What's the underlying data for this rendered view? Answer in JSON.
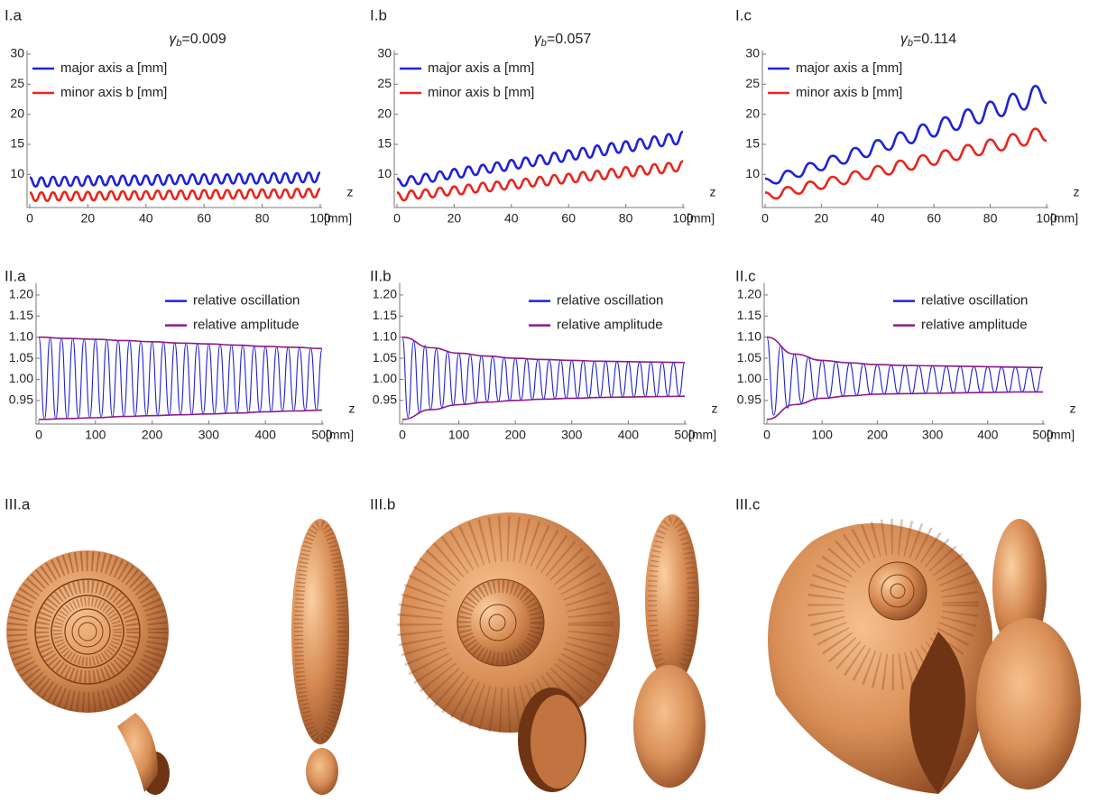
{
  "chart_data": [
    {
      "type": "line",
      "panel_label": "I.a",
      "title_symbol": "γ",
      "title_subscript": "b",
      "title_value": "=0.009",
      "x_label": "z",
      "x_unit": "[mm]",
      "xlim": [
        0,
        100
      ],
      "xticks": [
        0,
        20,
        40,
        60,
        80,
        100
      ],
      "ylim": [
        4.5,
        30
      ],
      "yticks": [
        10,
        15,
        20,
        25,
        30
      ],
      "x": [
        0,
        2,
        4,
        6,
        8,
        10,
        12,
        14,
        16,
        18,
        20,
        22,
        24,
        26,
        28,
        30,
        32,
        34,
        36,
        38,
        40,
        42,
        44,
        46,
        48,
        50,
        52,
        54,
        56,
        58,
        60,
        62,
        64,
        66,
        68,
        70,
        72,
        74,
        76,
        78,
        80,
        82,
        84,
        86,
        88,
        90,
        92,
        94,
        96,
        98,
        100
      ],
      "series": [
        {
          "name": "major axis a [mm]",
          "color": "#1f22d8",
          "values": [
            9.5,
            8.0,
            9.5,
            8.0,
            9.6,
            8.1,
            9.6,
            8.1,
            9.6,
            8.1,
            9.7,
            8.2,
            9.7,
            8.2,
            9.7,
            8.2,
            9.8,
            8.2,
            9.8,
            8.3,
            9.8,
            8.3,
            9.9,
            8.3,
            9.9,
            8.4,
            9.9,
            8.4,
            10.0,
            8.4,
            10.0,
            8.4,
            10.0,
            8.5,
            10.0,
            8.5,
            10.1,
            8.5,
            10.1,
            8.5,
            10.1,
            8.6,
            10.2,
            8.6,
            10.2,
            8.6,
            10.2,
            8.7,
            10.3,
            8.7,
            10.3
          ]
        },
        {
          "name": "minor axis b [mm]",
          "color": "#e8261c",
          "values": [
            7.0,
            5.6,
            7.0,
            5.6,
            7.0,
            5.7,
            7.1,
            5.7,
            7.1,
            5.7,
            7.1,
            5.7,
            7.1,
            5.8,
            7.2,
            5.8,
            7.2,
            5.8,
            7.2,
            5.8,
            7.2,
            5.9,
            7.3,
            5.9,
            7.3,
            5.9,
            7.3,
            5.9,
            7.3,
            5.9,
            7.4,
            6.0,
            7.4,
            6.0,
            7.4,
            6.0,
            7.4,
            6.0,
            7.5,
            6.1,
            7.5,
            6.1,
            7.5,
            6.1,
            7.5,
            6.1,
            7.6,
            6.2,
            7.6,
            6.2,
            7.6
          ]
        }
      ]
    },
    {
      "type": "line",
      "panel_label": "I.b",
      "title_symbol": "γ",
      "title_subscript": "b",
      "title_value": "=0.057",
      "x_label": "z",
      "x_unit": "[mm]",
      "xlim": [
        0,
        100
      ],
      "xticks": [
        0,
        20,
        40,
        60,
        80,
        100
      ],
      "ylim": [
        4.5,
        30
      ],
      "yticks": [
        10,
        15,
        20,
        25,
        30
      ],
      "x": [
        0,
        2.5,
        5,
        7.5,
        10,
        12.5,
        15,
        17.5,
        20,
        22.5,
        25,
        27.5,
        30,
        32.5,
        35,
        37.5,
        40,
        42.5,
        45,
        47.5,
        50,
        52.5,
        55,
        57.5,
        60,
        62.5,
        65,
        67.5,
        70,
        72.5,
        75,
        77.5,
        80,
        82.5,
        85,
        87.5,
        90,
        92.5,
        95,
        97.5,
        100
      ],
      "series": [
        {
          "name": "major axis a [mm]",
          "color": "#1f22d8",
          "values": [
            9.3,
            8.1,
            9.7,
            8.4,
            10.1,
            8.8,
            10.5,
            9.2,
            10.9,
            9.5,
            11.3,
            9.9,
            11.6,
            10.3,
            12.0,
            10.6,
            12.4,
            11.0,
            12.8,
            11.4,
            13.2,
            11.7,
            13.6,
            12.1,
            14.0,
            12.5,
            14.4,
            12.8,
            14.8,
            13.2,
            15.2,
            13.6,
            15.5,
            13.9,
            15.9,
            14.3,
            16.3,
            14.7,
            16.7,
            15.0,
            17.1
          ]
        },
        {
          "name": "minor axis b [mm]",
          "color": "#e8261c",
          "values": [
            7.0,
            5.7,
            7.3,
            6.0,
            7.5,
            6.2,
            7.8,
            6.5,
            8.0,
            6.7,
            8.3,
            7.0,
            8.6,
            7.2,
            8.8,
            7.5,
            9.1,
            7.7,
            9.3,
            8.0,
            9.6,
            8.2,
            9.9,
            8.5,
            10.1,
            8.7,
            10.4,
            9.0,
            10.6,
            9.2,
            10.9,
            9.5,
            11.2,
            9.7,
            11.4,
            10.0,
            11.7,
            10.2,
            11.9,
            10.5,
            12.2
          ]
        }
      ]
    },
    {
      "type": "line",
      "panel_label": "I.c",
      "title_symbol": "γ",
      "title_subscript": "b",
      "title_value": "=0.114",
      "x_label": "z",
      "x_unit": "[mm]",
      "xlim": [
        0,
        100
      ],
      "xticks": [
        0,
        20,
        40,
        60,
        80,
        100
      ],
      "ylim": [
        4.5,
        30
      ],
      "yticks": [
        10,
        15,
        20,
        25,
        30
      ],
      "x": [
        0,
        4,
        8,
        12,
        16,
        20,
        24,
        28,
        32,
        36,
        40,
        44,
        48,
        52,
        56,
        60,
        64,
        68,
        72,
        76,
        80,
        84,
        88,
        92,
        96,
        100
      ],
      "series": [
        {
          "name": "major axis a [mm]",
          "color": "#1f22d8",
          "values": [
            9.3,
            8.5,
            10.6,
            9.6,
            11.9,
            10.7,
            13.1,
            11.8,
            14.4,
            12.9,
            15.7,
            14.1,
            17.0,
            15.2,
            18.3,
            16.3,
            19.5,
            17.4,
            20.8,
            18.5,
            22.1,
            19.7,
            23.4,
            20.8,
            24.7,
            21.9
          ]
        },
        {
          "name": "minor axis b [mm]",
          "color": "#e8261c",
          "values": [
            7.0,
            6.0,
            7.9,
            6.8,
            8.8,
            7.6,
            9.6,
            8.4,
            10.5,
            9.2,
            11.4,
            10.0,
            12.3,
            10.8,
            13.2,
            11.6,
            14.0,
            12.4,
            14.9,
            13.2,
            15.8,
            14.0,
            16.7,
            14.8,
            17.6,
            15.6
          ]
        }
      ]
    },
    {
      "type": "line",
      "panel_label": "II.a",
      "x_label": "z",
      "x_unit": "[mm]",
      "xlim": [
        0,
        500
      ],
      "xticks": [
        0,
        100,
        200,
        300,
        400,
        500
      ],
      "ylim": [
        0.894,
        1.22
      ],
      "yticks": [
        0.95,
        {
          "value": 1.0,
          "label": "1.00"
        },
        1.05,
        {
          "value": 1.1,
          "label": "1.10"
        },
        1.15,
        {
          "value": 1.2,
          "label": "1.20"
        }
      ],
      "series": [
        {
          "name": "relative oscillation",
          "color": "#1f22d8",
          "x": [
            0,
            10,
            20,
            30,
            40,
            50,
            60,
            70,
            80,
            90,
            100,
            110,
            120,
            130,
            140,
            150,
            160,
            170,
            180,
            190,
            200,
            210,
            220,
            230,
            240,
            250,
            260,
            270,
            280,
            290,
            300,
            310,
            320,
            330,
            340,
            350,
            360,
            370,
            380,
            390,
            400,
            410,
            420,
            430,
            440,
            450,
            460,
            470,
            480,
            490,
            500
          ],
          "values": [
            1.1,
            0.905,
            1.099,
            0.906,
            1.098,
            0.907,
            1.097,
            0.908,
            1.096,
            0.909,
            1.095,
            0.91,
            1.094,
            0.911,
            1.092,
            0.912,
            1.091,
            0.912,
            1.09,
            0.913,
            1.089,
            0.914,
            1.088,
            0.915,
            1.087,
            0.916,
            1.086,
            0.917,
            1.085,
            0.918,
            1.084,
            0.919,
            1.083,
            0.92,
            1.082,
            0.92,
            1.081,
            0.921,
            1.079,
            0.922,
            1.078,
            0.923,
            1.077,
            0.924,
            1.076,
            0.925,
            1.075,
            0.926,
            1.074,
            0.927,
            1.073
          ]
        },
        {
          "name": "relative amplitude",
          "color": "#8b1a8b",
          "x": [
            0,
            50,
            100,
            150,
            200,
            250,
            300,
            350,
            400,
            450,
            500
          ],
          "upper": [
            1.1,
            1.097,
            1.095,
            1.092,
            1.089,
            1.086,
            1.084,
            1.081,
            1.078,
            1.076,
            1.073
          ],
          "lower": [
            0.905,
            0.907,
            0.909,
            0.912,
            0.914,
            0.916,
            0.918,
            0.92,
            0.923,
            0.925,
            0.927
          ]
        }
      ]
    },
    {
      "type": "line",
      "panel_label": "II.b",
      "x_label": "z",
      "x_unit": "[mm]",
      "xlim": [
        0,
        500
      ],
      "xticks": [
        0,
        100,
        200,
        300,
        400,
        500
      ],
      "ylim": [
        0.894,
        1.22
      ],
      "yticks": [
        0.95,
        {
          "value": 1.0,
          "label": "1.00"
        },
        1.05,
        {
          "value": 1.1,
          "label": "1.10"
        },
        1.15,
        {
          "value": 1.2,
          "label": "1.20"
        }
      ],
      "series": [
        {
          "name": "relative oscillation",
          "color": "#1f22d8",
          "x": [
            0,
            10,
            20,
            30,
            40,
            50,
            60,
            70,
            80,
            90,
            100,
            110,
            120,
            130,
            140,
            150,
            160,
            170,
            180,
            190,
            200,
            210,
            220,
            230,
            240,
            250,
            260,
            270,
            280,
            290,
            300,
            310,
            320,
            330,
            340,
            350,
            360,
            370,
            380,
            390,
            400,
            410,
            420,
            430,
            440,
            450,
            460,
            470,
            480,
            490,
            500
          ],
          "values": [
            1.1,
            0.91,
            1.09,
            0.919,
            1.08,
            0.928,
            1.072,
            0.933,
            1.067,
            0.938,
            1.062,
            0.941,
            1.059,
            0.944,
            1.056,
            0.946,
            1.054,
            0.948,
            1.052,
            0.949,
            1.05,
            0.951,
            1.049,
            0.952,
            1.047,
            0.953,
            1.046,
            0.954,
            1.046,
            0.955,
            1.045,
            0.955,
            1.044,
            0.956,
            1.043,
            0.957,
            1.043,
            0.957,
            1.042,
            0.958,
            1.042,
            0.958,
            1.041,
            0.959,
            1.041,
            0.959,
            1.04,
            0.96,
            1.04,
            0.96,
            1.04
          ]
        },
        {
          "name": "relative amplitude",
          "color": "#8b1a8b",
          "x": [
            0,
            50,
            100,
            150,
            200,
            250,
            300,
            350,
            400,
            450,
            500
          ],
          "upper": [
            1.1,
            1.075,
            1.062,
            1.055,
            1.05,
            1.047,
            1.045,
            1.043,
            1.042,
            1.041,
            1.04
          ],
          "lower": [
            0.905,
            0.928,
            0.94,
            0.946,
            0.95,
            0.953,
            0.955,
            0.957,
            0.958,
            0.959,
            0.96
          ]
        }
      ]
    },
    {
      "type": "line",
      "panel_label": "II.c",
      "x_label": "z",
      "x_unit": "[mm]",
      "xlim": [
        0,
        500
      ],
      "xticks": [
        0,
        100,
        200,
        300,
        400,
        500
      ],
      "ylim": [
        0.894,
        1.22
      ],
      "yticks": [
        0.95,
        {
          "value": 1.0,
          "label": "1.00"
        },
        1.05,
        {
          "value": 1.1,
          "label": "1.10"
        },
        1.15,
        {
          "value": 1.2,
          "label": "1.20"
        }
      ],
      "series": [
        {
          "name": "relative oscillation",
          "color": "#1f22d8",
          "x": [
            0,
            12.5,
            25,
            37.5,
            50,
            62.5,
            75,
            87.5,
            100,
            112.5,
            125,
            137.5,
            150,
            162.5,
            175,
            187.5,
            200,
            212.5,
            225,
            237.5,
            250,
            262.5,
            275,
            287.5,
            300,
            312.5,
            325,
            337.5,
            350,
            362.5,
            375,
            387.5,
            400,
            412.5,
            425,
            437.5,
            450,
            462.5,
            475,
            487.5,
            500
          ],
          "values": [
            1.1,
            0.915,
            1.08,
            0.932,
            1.06,
            0.944,
            1.052,
            0.951,
            1.045,
            0.957,
            1.042,
            0.96,
            1.039,
            0.962,
            1.037,
            0.964,
            1.035,
            0.965,
            1.034,
            0.966,
            1.033,
            0.966,
            1.032,
            0.967,
            1.032,
            0.967,
            1.031,
            0.968,
            1.031,
            0.968,
            1.03,
            0.969,
            1.03,
            0.969,
            1.029,
            0.969,
            1.029,
            0.97,
            1.028,
            0.97,
            1.028
          ]
        },
        {
          "name": "relative amplitude",
          "color": "#8b1a8b",
          "x": [
            0,
            50,
            100,
            150,
            200,
            250,
            300,
            350,
            400,
            450,
            500
          ],
          "upper": [
            1.1,
            1.06,
            1.045,
            1.039,
            1.035,
            1.033,
            1.032,
            1.031,
            1.03,
            1.029,
            1.028
          ],
          "lower": [
            0.905,
            0.94,
            0.955,
            0.961,
            0.965,
            0.966,
            0.967,
            0.968,
            0.969,
            0.97,
            0.97
          ]
        }
      ]
    }
  ],
  "shell_labels": [
    "III.a",
    "III.b",
    "III.c"
  ]
}
